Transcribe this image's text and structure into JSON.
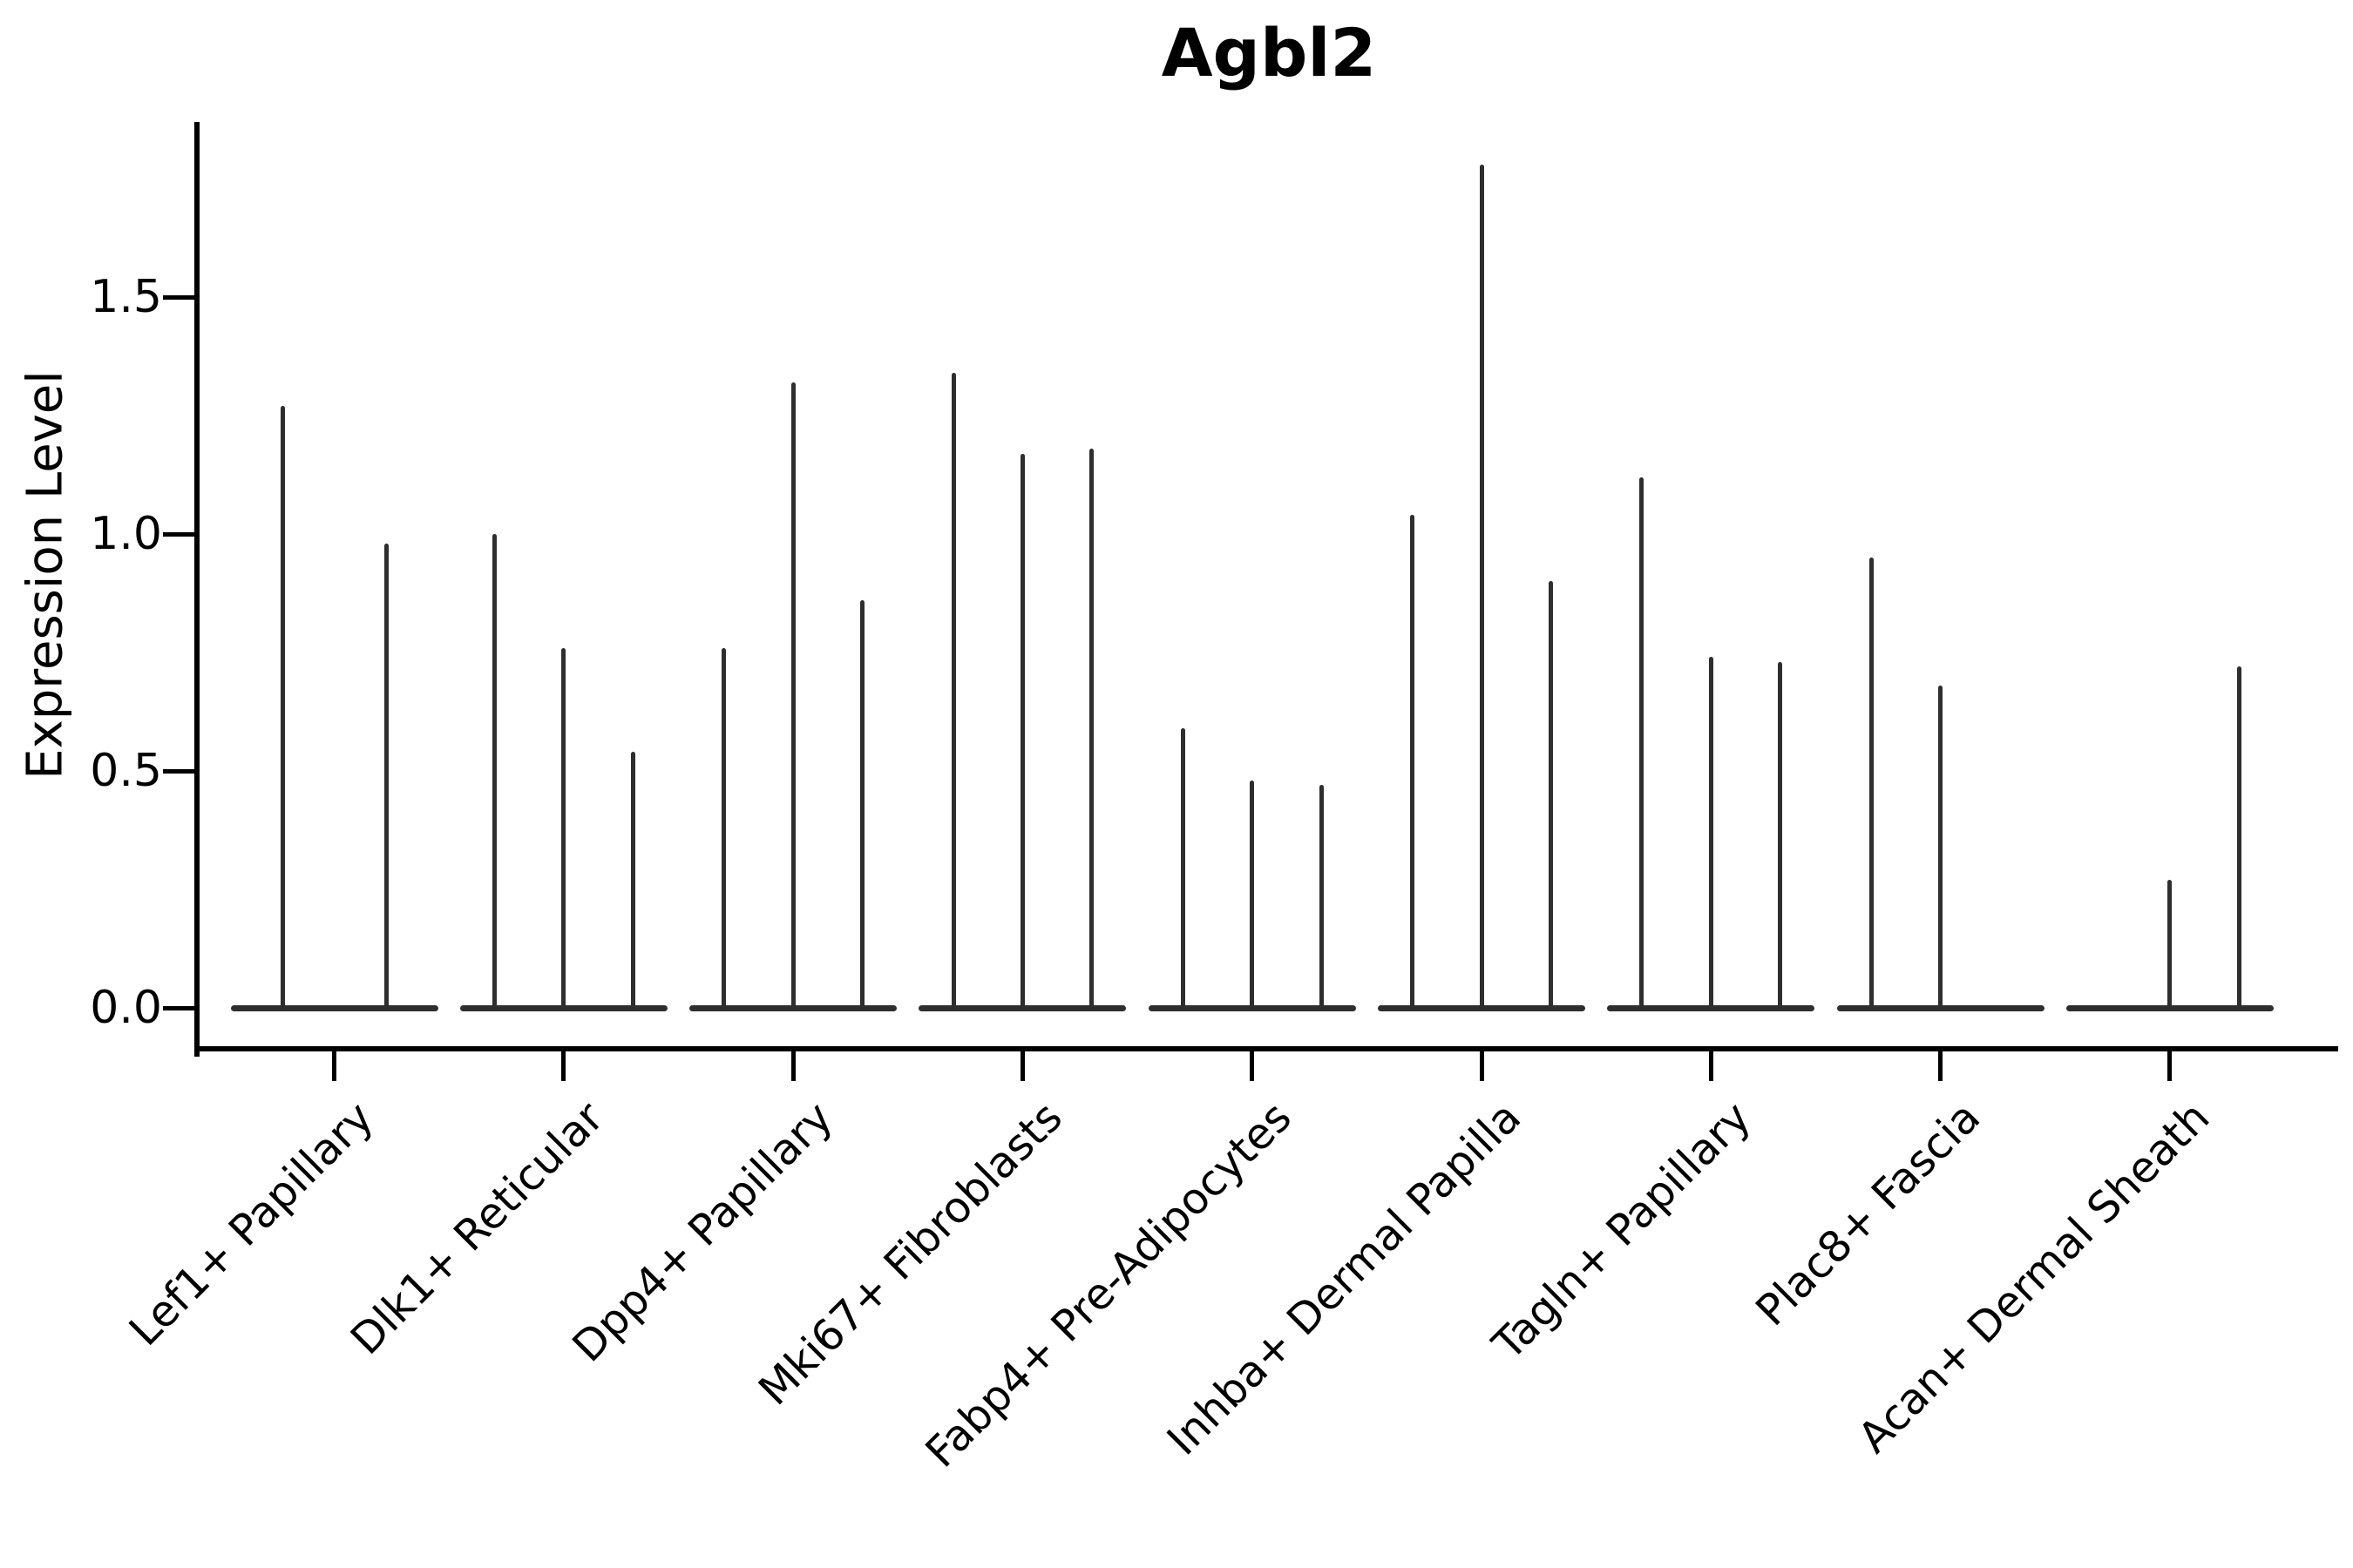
{
  "chart_data": {
    "type": "violin",
    "title": "Agbl2",
    "xlabel": "",
    "ylabel": "Expression Level",
    "ylim": [
      -0.09,
      1.87
    ],
    "yticks": [
      {
        "v": 0.0,
        "label": "0.0"
      },
      {
        "v": 0.5,
        "label": "0.5"
      },
      {
        "v": 1.0,
        "label": "1.0"
      },
      {
        "v": 1.5,
        "label": "1.5"
      }
    ],
    "grid": false,
    "legend": "none",
    "note": "Each category shows thin spike-shaped violins on a flat zero baseline; spike heights are max expression values",
    "categories": [
      {
        "label": "Lef1+ Papillary",
        "spike_values": [
          1.27,
          0.98
        ]
      },
      {
        "label": "Dlk1+ Reticular",
        "spike_values": [
          1.0,
          0.76,
          0.54
        ]
      },
      {
        "label": "Dpp4+ Papillary",
        "spike_values": [
          0.76,
          1.32,
          0.86
        ]
      },
      {
        "label": "Mki67+ Fibroblasts",
        "spike_values": [
          1.34,
          1.17,
          1.18
        ]
      },
      {
        "label": "Fabp4+ Pre-Adipocytes",
        "spike_values": [
          0.59,
          0.48,
          0.47
        ]
      },
      {
        "label": "Inhba+ Dermal Papilla",
        "spike_values": [
          1.04,
          1.78,
          0.9
        ]
      },
      {
        "label": "Tagln+ Papillary",
        "spike_values": [
          1.12,
          0.74,
          0.73
        ]
      },
      {
        "label": "Plac8+ Fascia",
        "spike_values": [
          0.95,
          0.68,
          0.0
        ]
      },
      {
        "label": "Acan+ Dermal Sheath",
        "spike_values": [
          0.0,
          0.27,
          0.72
        ]
      }
    ],
    "colors": {
      "violin": "#2e2e2e",
      "axis": "#000000",
      "text": "#000000",
      "background": "#ffffff"
    }
  }
}
